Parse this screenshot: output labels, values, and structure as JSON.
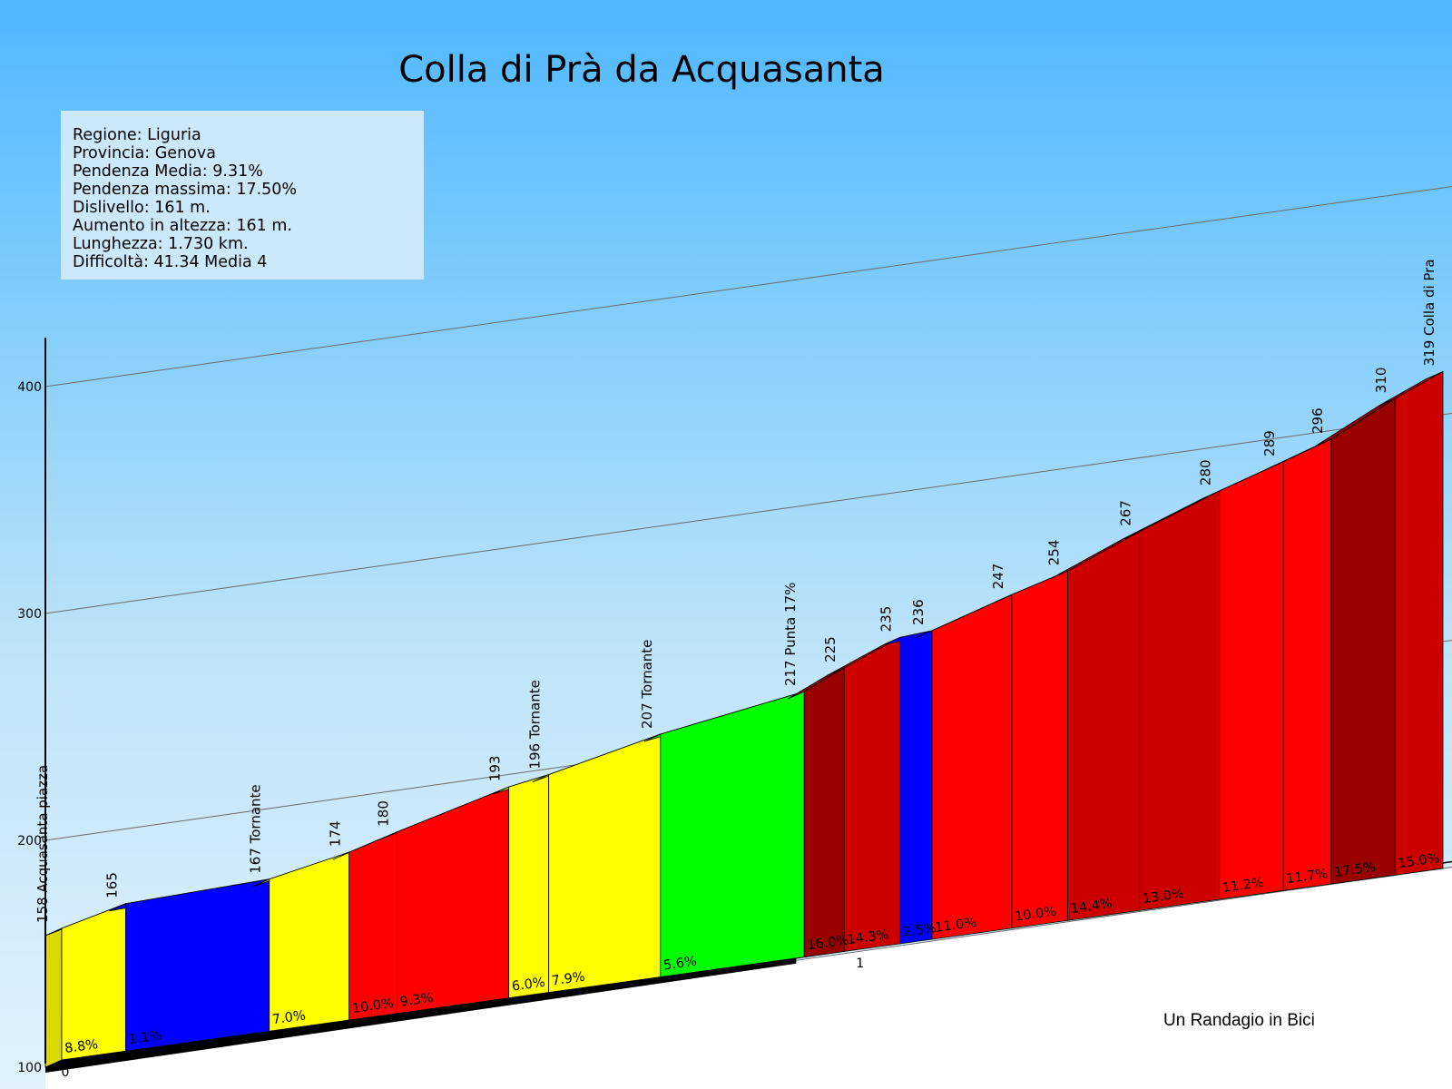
{
  "chart_data": {
    "type": "area",
    "title": "Colla di Prà da Acquasanta",
    "info": [
      "Regione: Liguria",
      "Provincia: Genova",
      "Pendenza Media: 9.31%",
      "Pendenza massima: 17.50%",
      "Dislivello:   161 m.",
      "Aumento in altezza:   161 m.",
      "Lunghezza:  1.730 km.",
      "Difficoltà: 41.34 Media 4"
    ],
    "yticks": [
      "100",
      "200",
      "300",
      "400"
    ],
    "ylim": [
      100,
      400
    ],
    "xlim": [
      0,
      1.73
    ],
    "km_marks": [
      "0",
      "1"
    ],
    "credit": "Un Randagio in Bici",
    "points": [
      {
        "km": 0,
        "alt": 158,
        "label": "158 Acquasanta piazza"
      },
      {
        "km": 0.08,
        "alt": 165,
        "label": "165"
      },
      {
        "km": 0.26,
        "alt": 167,
        "label": "167 Tornante"
      },
      {
        "km": 0.36,
        "alt": 174,
        "label": "174"
      },
      {
        "km": 0.42,
        "alt": 180,
        "label": "180"
      },
      {
        "km": 0.56,
        "alt": 193,
        "label": "193"
      },
      {
        "km": 0.61,
        "alt": 196,
        "label": "196 Tornante"
      },
      {
        "km": 0.75,
        "alt": 207,
        "label": "207 Tornante"
      },
      {
        "km": 0.93,
        "alt": 217,
        "label": "217 Punta 17%"
      },
      {
        "km": 0.98,
        "alt": 225,
        "label": "225"
      },
      {
        "km": 1.05,
        "alt": 235,
        "label": "235"
      },
      {
        "km": 1.09,
        "alt": 236,
        "label": "236"
      },
      {
        "km": 1.19,
        "alt": 247,
        "label": "247"
      },
      {
        "km": 1.26,
        "alt": 254,
        "label": "254"
      },
      {
        "km": 1.35,
        "alt": 267,
        "label": "267"
      },
      {
        "km": 1.45,
        "alt": 280,
        "label": "280"
      },
      {
        "km": 1.53,
        "alt": 289,
        "label": "289"
      },
      {
        "km": 1.59,
        "alt": 296,
        "label": "296"
      },
      {
        "km": 1.67,
        "alt": 310,
        "label": "310"
      },
      {
        "km": 1.73,
        "alt": 319,
        "label": "319 Colla di Pra"
      }
    ],
    "segments": [
      {
        "grade": "8.8%",
        "color": "#ffff00"
      },
      {
        "grade": "1.1%",
        "color": "#0000ff"
      },
      {
        "grade": "7.0%",
        "color": "#ffff00"
      },
      {
        "grade": "10.0%",
        "color": "#ff0000"
      },
      {
        "grade": "9.3%",
        "color": "#ff0000"
      },
      {
        "grade": "6.0%",
        "color": "#ffff00"
      },
      {
        "grade": "7.9%",
        "color": "#ffff00"
      },
      {
        "grade": "5.6%",
        "color": "#00ff00"
      },
      {
        "grade": "16.0%",
        "color": "#990000"
      },
      {
        "grade": "14.3%",
        "color": "#cc0000"
      },
      {
        "grade": "2.5%",
        "color": "#0000ff"
      },
      {
        "grade": "11.0%",
        "color": "#ff0000"
      },
      {
        "grade": "10.0%",
        "color": "#ff0000"
      },
      {
        "grade": "14.4%",
        "color": "#cc0000"
      },
      {
        "grade": "13.0%",
        "color": "#cc0000"
      },
      {
        "grade": "11.2%",
        "color": "#ff0000"
      },
      {
        "grade": "11.7%",
        "color": "#ff0000"
      },
      {
        "grade": "17.5%",
        "color": "#990000"
      },
      {
        "grade": "15.0%",
        "color": "#cc0000"
      }
    ]
  }
}
